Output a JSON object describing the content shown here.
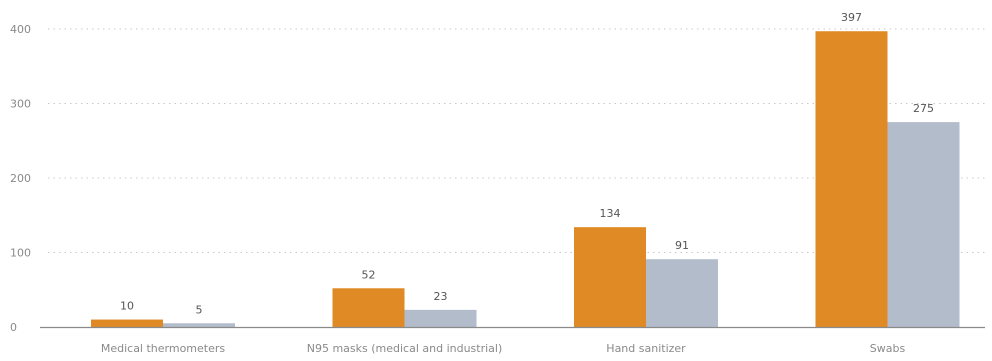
{
  "chart_data": {
    "type": "bar",
    "categories": [
      "Medical thermometers",
      "N95 masks (medical and industrial)",
      "Hand sanitizer",
      "Swabs"
    ],
    "series": [
      {
        "values": [
          10,
          52,
          134,
          397
        ],
        "color": "#e08a26"
      },
      {
        "values": [
          5,
          23,
          91,
          275
        ],
        "color": "#b3bccb"
      }
    ],
    "y_ticks": [
      "0",
      "100",
      "200",
      "300",
      "400"
    ],
    "ylim": [
      0,
      400
    ],
    "grid": "dotted horizontal",
    "title": "",
    "xlabel": "",
    "ylabel": ""
  }
}
